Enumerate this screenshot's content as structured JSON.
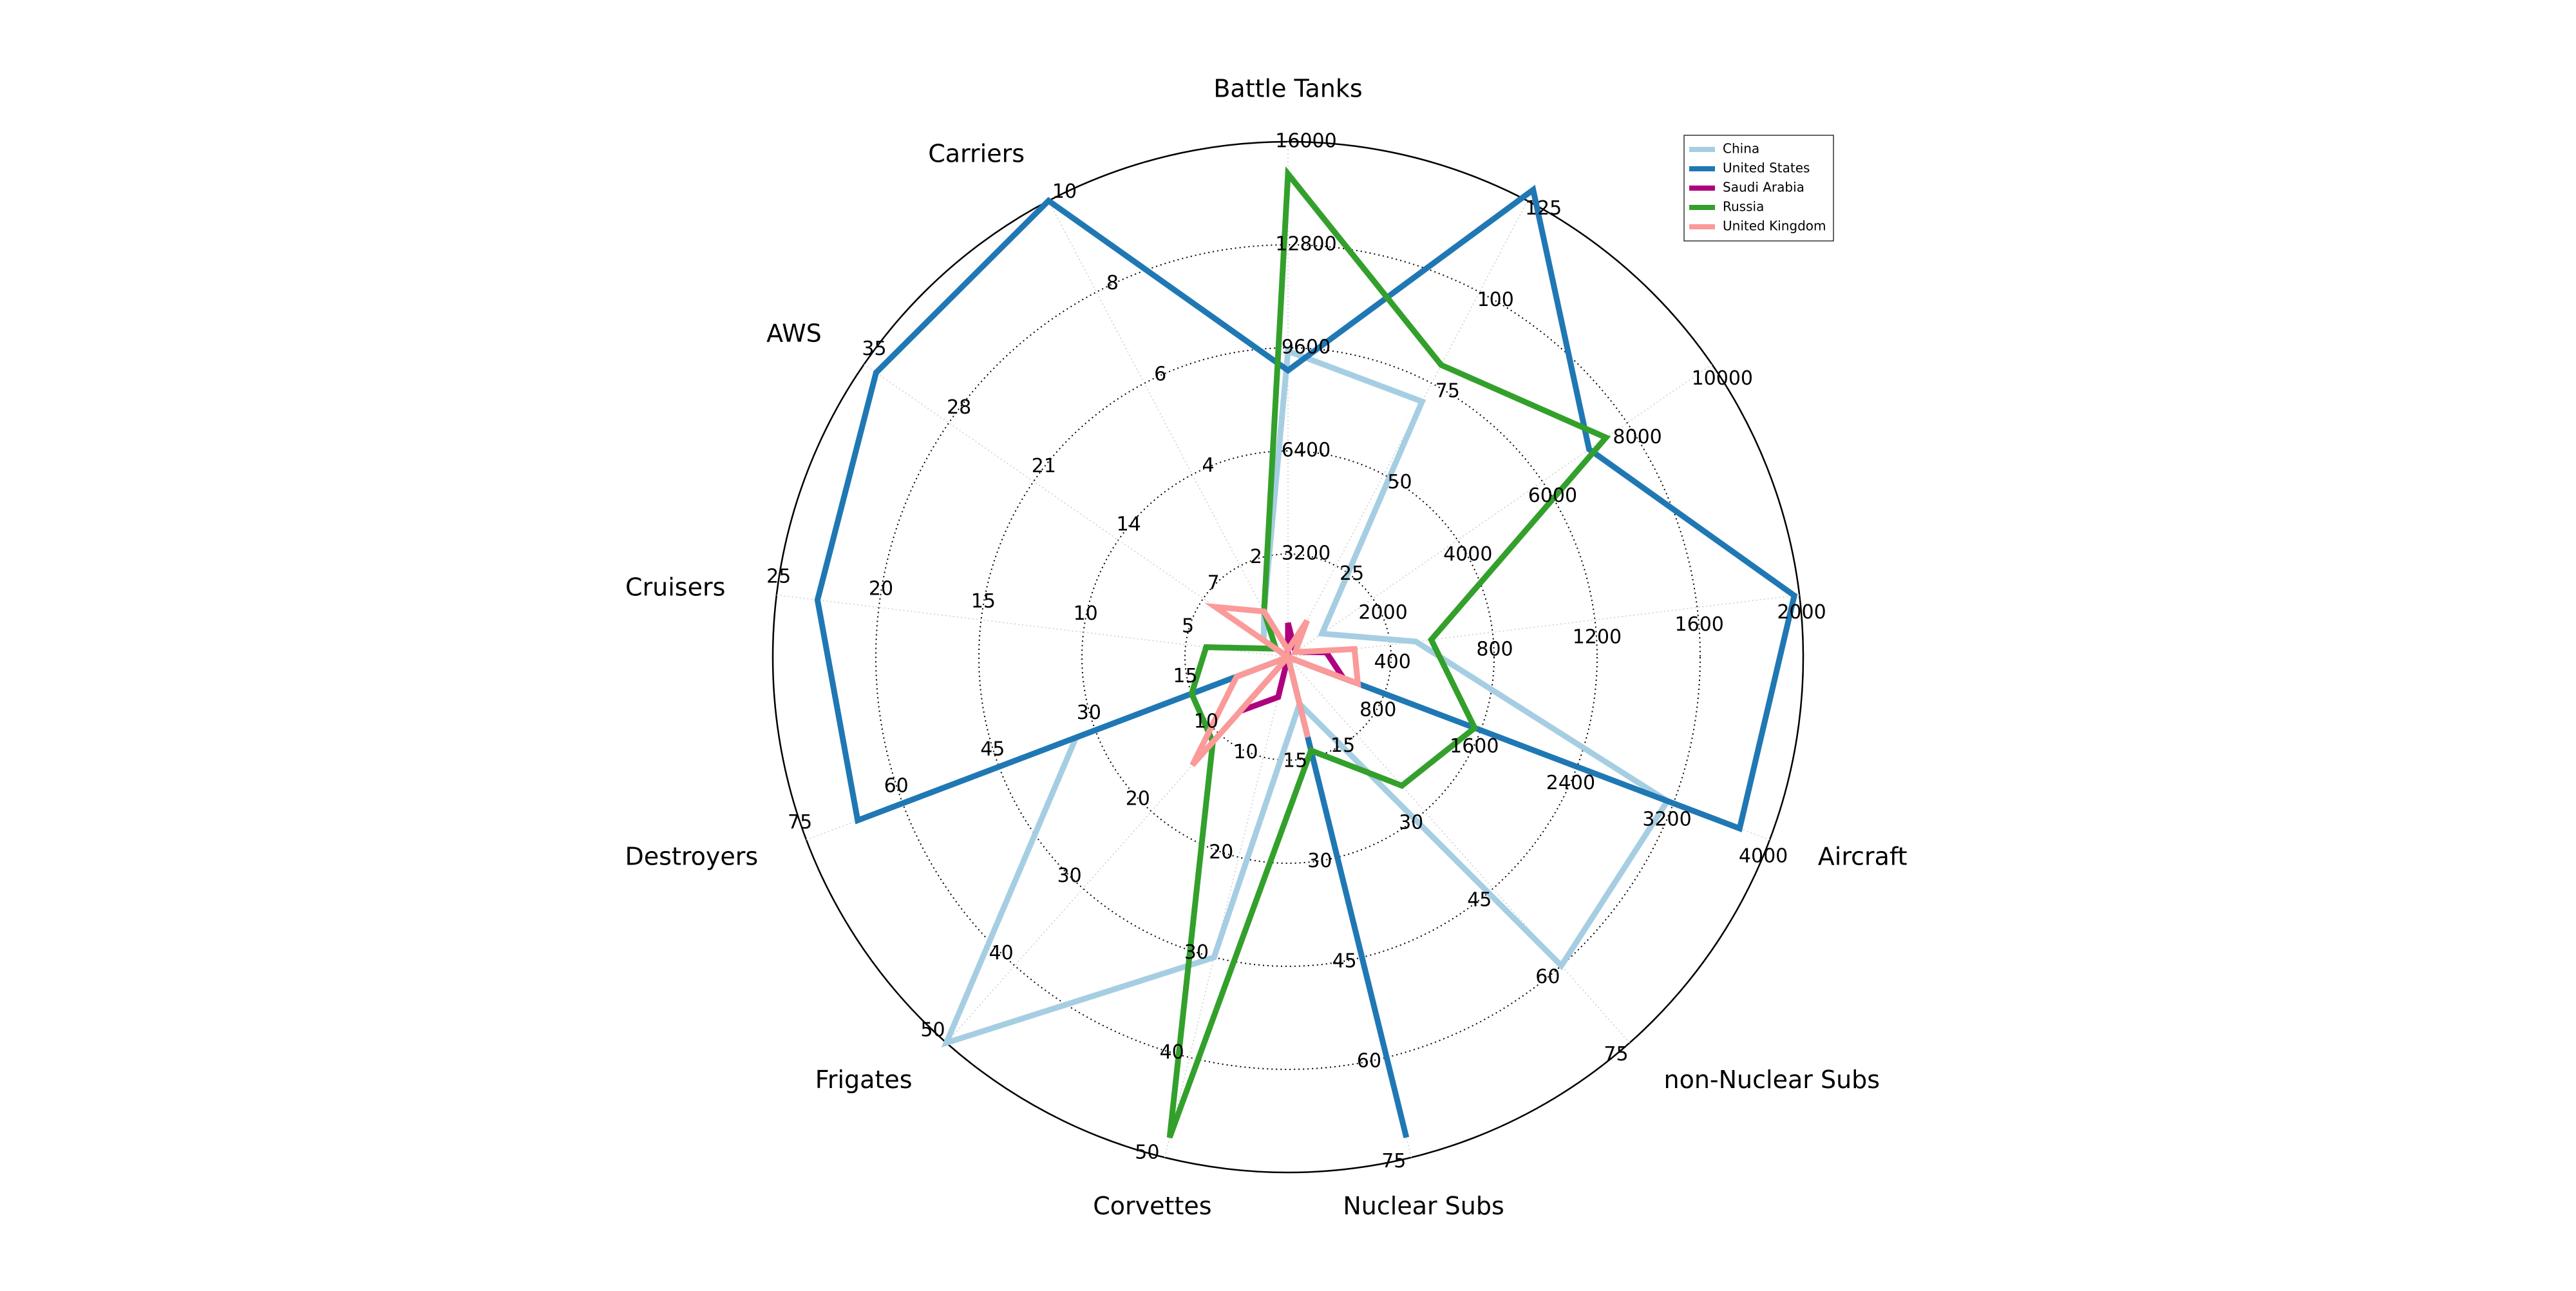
{
  "chart_data": {
    "type": "radar",
    "axes": [
      {
        "label": "Battle Tanks",
        "max": 16000,
        "ticks": [
          3200,
          6400,
          9600,
          12800,
          16000
        ]
      },
      {
        "label": "",
        "max": 125,
        "ticks": [
          25,
          50,
          75,
          100,
          125
        ]
      },
      {
        "label": "",
        "max": 10000,
        "ticks": [
          2000,
          4000,
          6000,
          8000,
          10000
        ]
      },
      {
        "label": "",
        "max": 2000,
        "ticks": [
          400,
          800,
          1200,
          1600,
          2000
        ]
      },
      {
        "label": "Aircraft",
        "max": 4000,
        "ticks": [
          800,
          1600,
          2400,
          3200,
          4000
        ]
      },
      {
        "label": "non-Nuclear Subs",
        "max": 75,
        "ticks": [
          15,
          30,
          45,
          60,
          75
        ]
      },
      {
        "label": "Nuclear Subs",
        "max": 75,
        "ticks": [
          15,
          30,
          45,
          60,
          75
        ]
      },
      {
        "label": "Corvettes",
        "max": 50,
        "ticks": [
          10,
          20,
          30,
          40,
          50
        ]
      },
      {
        "label": "Frigates",
        "max": 50,
        "ticks": [
          10,
          20,
          30,
          40,
          50
        ]
      },
      {
        "label": "Destroyers",
        "max": 75,
        "ticks": [
          15,
          30,
          45,
          60,
          75
        ]
      },
      {
        "label": "Cruisers",
        "max": 25,
        "ticks": [
          5,
          10,
          15,
          20,
          25
        ]
      },
      {
        "label": "AWS",
        "max": 35,
        "ticks": [
          7,
          14,
          21,
          28,
          35
        ]
      },
      {
        "label": "Carriers",
        "max": 10,
        "ticks": [
          2,
          4,
          6,
          8,
          10
        ]
      }
    ],
    "series": [
      {
        "name": "China",
        "color": "#a6cee3",
        "values": [
          9500,
          70,
          800,
          500,
          3150,
          60,
          7,
          30,
          50,
          33,
          0,
          2,
          1
        ]
      },
      {
        "name": "United States",
        "color": "#1f78b4",
        "values": [
          8900,
          128,
          7100,
          1980,
          3750,
          0,
          72,
          0,
          0,
          67,
          23,
          34,
          10
        ]
      },
      {
        "name": "Saudi Arabia",
        "color": "#ae017e",
        "values": [
          1060,
          3,
          180,
          150,
          460,
          0,
          0,
          4,
          7,
          0,
          0,
          1,
          0
        ]
      },
      {
        "name": "Russia",
        "color": "#33a02c",
        "values": [
          15000,
          80,
          7500,
          560,
          1550,
          25,
          14,
          48,
          11,
          15,
          4,
          1,
          1
        ]
      },
      {
        "name": "United Kingdom",
        "color": "#fb9a99",
        "values": [
          230,
          10,
          170,
          260,
          580,
          0,
          12,
          0,
          14,
          8,
          0,
          6,
          1
        ]
      }
    ],
    "grid": true,
    "legend": "top-right"
  }
}
